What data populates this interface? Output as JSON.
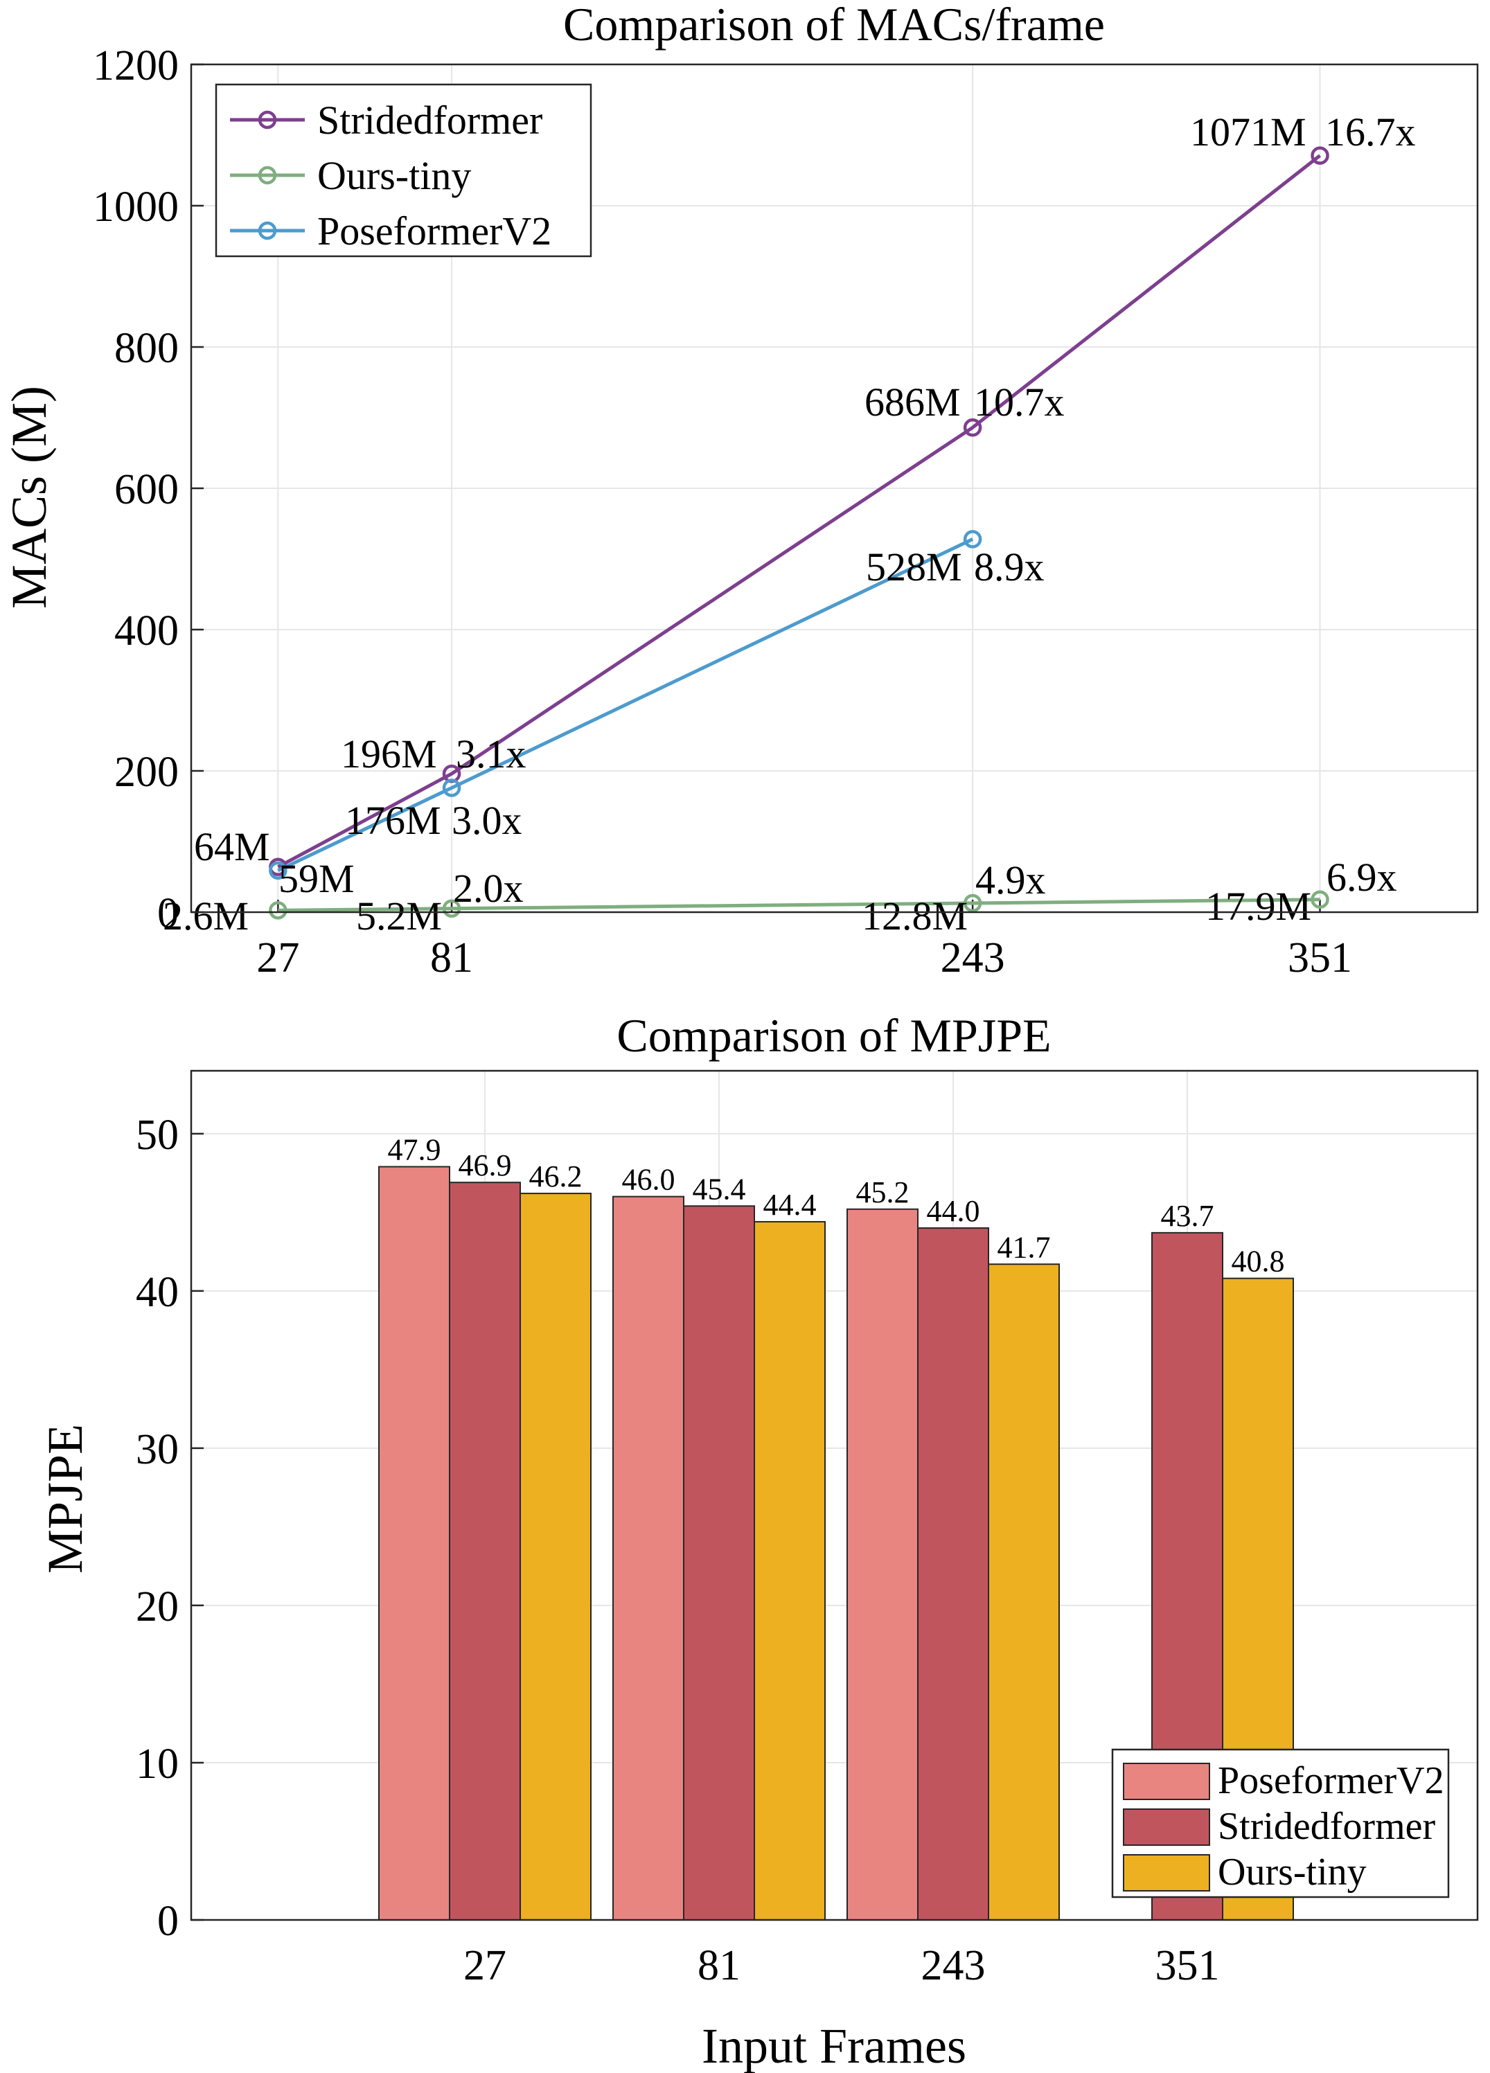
{
  "chart_data": [
    {
      "type": "line",
      "title": "Comparison of MACs/frame",
      "xlabel": "",
      "ylabel": "MACs (M)",
      "x": [
        27,
        81,
        243,
        351
      ],
      "x_tick_labels": [
        "27",
        "81",
        "243",
        "351"
      ],
      "xlim": [
        0,
        400
      ],
      "ylim": [
        0,
        1200
      ],
      "y_ticks": [
        "0",
        "200",
        "400",
        "600",
        "800",
        "1000",
        "1200"
      ],
      "grid": true,
      "legend_position": "top-left",
      "series": [
        {
          "name": "Stridedformer",
          "color": "#7e3f8f",
          "values": [
            64,
            196,
            686,
            1071
          ],
          "value_labels": [
            "64M",
            "196M",
            "686M",
            "1071M"
          ],
          "ratio_labels": [
            "",
            "3.1x",
            "10.7x",
            "16.7x"
          ]
        },
        {
          "name": "Ours-tiny",
          "color": "#7fae7f",
          "values": [
            2.6,
            5.2,
            12.8,
            17.9
          ],
          "value_labels": [
            "2.6M",
            "5.2M",
            "12.8M",
            "17.9M"
          ],
          "ratio_labels": [
            "",
            "2.0x",
            "4.9x",
            "6.9x"
          ]
        },
        {
          "name": "PoseformerV2",
          "color": "#4c9bce",
          "values": [
            59,
            176,
            528,
            null
          ],
          "value_labels": [
            "59M",
            "176M",
            "528M",
            ""
          ],
          "ratio_labels": [
            "",
            "3.0x",
            "8.9x",
            ""
          ]
        }
      ]
    },
    {
      "type": "bar",
      "title": "Comparison of MPJPE",
      "xlabel": "Input Frames",
      "ylabel": "MPJPE",
      "categories": [
        "27",
        "81",
        "243",
        "351"
      ],
      "ylim": [
        0,
        54
      ],
      "y_ticks": [
        "0",
        "10",
        "20",
        "30",
        "40",
        "50"
      ],
      "grid": true,
      "legend_position": "bottom-right",
      "series": [
        {
          "name": "PoseformerV2",
          "color": "#e98581",
          "values": [
            47.9,
            46.0,
            45.2,
            null
          ],
          "labels": [
            "47.9",
            "46.0",
            "45.2",
            ""
          ]
        },
        {
          "name": "Stridedformer",
          "color": "#c1555e",
          "values": [
            46.9,
            45.4,
            44.0,
            43.7
          ],
          "labels": [
            "46.9",
            "45.4",
            "44.0",
            "43.7"
          ]
        },
        {
          "name": "Ours-tiny",
          "color": "#ecb020",
          "values": [
            46.2,
            44.4,
            41.7,
            40.8
          ],
          "labels": [
            "46.2",
            "44.4",
            "41.7",
            "40.8"
          ]
        }
      ]
    }
  ]
}
